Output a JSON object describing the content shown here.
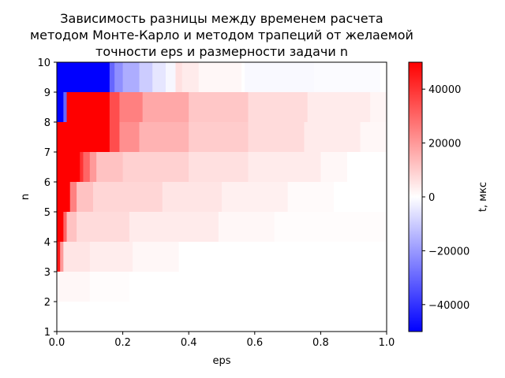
{
  "chart_data": {
    "type": "heatmap",
    "title": [
      "Зависимость разницы между временем расчета",
      "методом Монте-Карло и методом трапеций от желаемой",
      "точности eps и размерности задачи n"
    ],
    "xlabel": "eps",
    "ylabel": "n",
    "colorbar_label": "t, мкс",
    "xlim": [
      0.0,
      1.0
    ],
    "ylim": [
      1,
      10
    ],
    "x_ticks": [
      "0.0",
      "0.2",
      "0.4",
      "0.6",
      "0.8",
      "1.0"
    ],
    "y_ticks": [
      "1",
      "2",
      "3",
      "4",
      "5",
      "6",
      "7",
      "8",
      "9",
      "10"
    ],
    "color_range": [
      -50000,
      50000
    ],
    "colorbar_ticks": [
      "−40000",
      "−20000",
      "0",
      "20000",
      "40000"
    ],
    "colormap": [
      "#0000ff",
      "#ffffff",
      "#ff0000"
    ],
    "grid": false,
    "rows": [
      {
        "n_from": 2,
        "n_to": 3,
        "cells": [
          [
            0.0,
            0.1,
            1500
          ],
          [
            0.1,
            0.22,
            600
          ],
          [
            0.22,
            1.0,
            0
          ]
        ]
      },
      {
        "n_from": 3,
        "n_to": 4,
        "cells": [
          [
            0.0,
            0.01,
            45000
          ],
          [
            0.01,
            0.02,
            20000
          ],
          [
            0.02,
            0.1,
            5000
          ],
          [
            0.1,
            0.23,
            3500
          ],
          [
            0.23,
            0.37,
            1500
          ],
          [
            0.37,
            1.0,
            0
          ]
        ]
      },
      {
        "n_from": 4,
        "n_to": 5,
        "cells": [
          [
            0.0,
            0.02,
            50000
          ],
          [
            0.02,
            0.03,
            30000
          ],
          [
            0.03,
            0.06,
            12000
          ],
          [
            0.06,
            0.22,
            7000
          ],
          [
            0.22,
            0.49,
            4000
          ],
          [
            0.49,
            0.66,
            1500
          ],
          [
            0.66,
            1.0,
            500
          ]
        ]
      },
      {
        "n_from": 5,
        "n_to": 6,
        "cells": [
          [
            0.0,
            0.04,
            50000
          ],
          [
            0.04,
            0.06,
            25000
          ],
          [
            0.06,
            0.11,
            12000
          ],
          [
            0.11,
            0.32,
            8000
          ],
          [
            0.32,
            0.5,
            5000
          ],
          [
            0.5,
            0.7,
            3000
          ],
          [
            0.7,
            0.84,
            1000
          ],
          [
            0.84,
            1.0,
            0
          ]
        ]
      },
      {
        "n_from": 6,
        "n_to": 7,
        "cells": [
          [
            0.0,
            0.07,
            50000
          ],
          [
            0.07,
            0.08,
            40000
          ],
          [
            0.08,
            0.1,
            30000
          ],
          [
            0.1,
            0.12,
            20000
          ],
          [
            0.12,
            0.2,
            12000
          ],
          [
            0.2,
            0.4,
            9000
          ],
          [
            0.4,
            0.58,
            6000
          ],
          [
            0.58,
            0.8,
            4000
          ],
          [
            0.8,
            0.88,
            1500
          ],
          [
            0.88,
            1.0,
            0
          ]
        ]
      },
      {
        "n_from": 7,
        "n_to": 8,
        "cells": [
          [
            0.0,
            0.16,
            50000
          ],
          [
            0.16,
            0.19,
            35000
          ],
          [
            0.19,
            0.25,
            22000
          ],
          [
            0.25,
            0.4,
            15000
          ],
          [
            0.4,
            0.58,
            10000
          ],
          [
            0.58,
            0.75,
            7000
          ],
          [
            0.75,
            0.92,
            4000
          ],
          [
            0.92,
            1.0,
            1500
          ]
        ]
      },
      {
        "n_from": 8,
        "n_to": 9,
        "cells": [
          [
            0.0,
            0.02,
            -50000
          ],
          [
            0.02,
            0.03,
            -30000
          ],
          [
            0.03,
            0.16,
            50000
          ],
          [
            0.16,
            0.19,
            35000
          ],
          [
            0.19,
            0.26,
            25000
          ],
          [
            0.26,
            0.4,
            17000
          ],
          [
            0.4,
            0.58,
            11000
          ],
          [
            0.58,
            0.76,
            7000
          ],
          [
            0.76,
            0.95,
            4000
          ],
          [
            0.95,
            1.0,
            2000
          ]
        ]
      },
      {
        "n_from": 9,
        "n_to": 10,
        "cells": [
          [
            0.0,
            0.025,
            50000
          ],
          [
            0.025,
            0.16,
            50000
          ],
          [
            0.16,
            0.2,
            38000
          ],
          [
            0.2,
            0.26,
            26000
          ],
          [
            0.26,
            0.4,
            18000
          ],
          [
            0.4,
            0.58,
            11000
          ],
          [
            0.58,
            0.76,
            7000
          ],
          [
            0.76,
            0.95,
            4000
          ],
          [
            0.95,
            1.0,
            2000
          ]
        ]
      },
      {
        "n_from": 9,
        "n_to": 10,
        "cells": [
          [
            0.0,
            0.16,
            -50000
          ],
          [
            0.16,
            0.175,
            -30000
          ],
          [
            0.175,
            0.2,
            -22000
          ],
          [
            0.2,
            0.25,
            -16000
          ],
          [
            0.25,
            0.29,
            -10000
          ],
          [
            0.29,
            0.33,
            -5000
          ],
          [
            0.33,
            0.36,
            -1500
          ],
          [
            0.36,
            0.38,
            6000
          ],
          [
            0.38,
            0.43,
            4000
          ],
          [
            0.43,
            0.56,
            1500
          ],
          [
            0.56,
            0.57,
            0
          ],
          [
            0.57,
            0.78,
            -1200
          ],
          [
            0.78,
            0.98,
            -700
          ],
          [
            0.98,
            1.0,
            0
          ]
        ]
      }
    ]
  }
}
